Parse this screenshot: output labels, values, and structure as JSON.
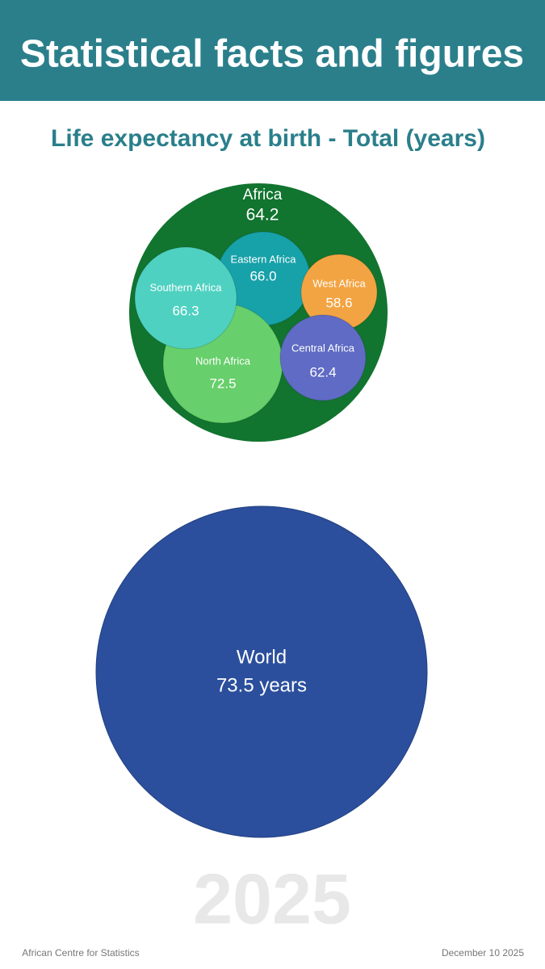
{
  "header": {
    "title": "Statistical facts and figures"
  },
  "chart_data": {
    "type": "packed-bubble",
    "title": "Life expectancy at birth - Total (years)",
    "parent": {
      "name": "Africa",
      "value": 64.2,
      "color": "#11742f"
    },
    "categories": [
      "Eastern Africa",
      "Southern Africa",
      "West Africa",
      "Central Africa",
      "North Africa"
    ],
    "values": [
      66.0,
      66.3,
      58.6,
      62.4,
      72.5
    ],
    "value_labels": [
      "66.0",
      "66.3",
      "58.6",
      "62.4",
      "72.5"
    ],
    "colors": [
      "#17a1a9",
      "#4fd1c1",
      "#f3a442",
      "#5f6bc4",
      "#67cf6b"
    ],
    "reference": {
      "name": "World",
      "value": 73.5,
      "value_label": "73.5 years",
      "color": "#2b4f9d"
    }
  },
  "watermark": "2025",
  "footer": {
    "source": "African Centre for Statistics",
    "date": "December 10 2025"
  }
}
